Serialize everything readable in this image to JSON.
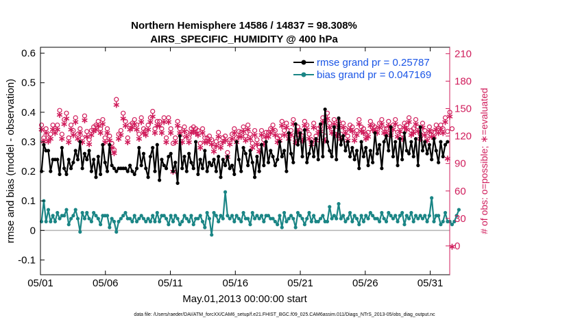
{
  "chart_data": {
    "type": "line",
    "title": "Northern Hemisphere 14586 / 14837 = 98.308%",
    "subtitle": "AIRS_SPECIFIC_HUMIDITY @ 400 hPa",
    "xlabel": "May.01,2013 00:00:00 start",
    "ylabel": "rmse and bias (model - observation)",
    "ylabel_right": "# of obs: o=possible; ∗=evaluated",
    "footnote": "data file: /Users/raeder/DAI/ATM_forcXX/CAM6_setup/f.e21.FHIST_BGC.f09_025.CAM6assim.011/Diags_NTrS_2013-05/obs_diag_output.nc",
    "xlim": [
      0,
      31.5
    ],
    "ylim": [
      -0.15,
      0.62
    ],
    "ylim_right": [
      -31.5,
      217
    ],
    "x_ticks": [
      0,
      5,
      10,
      15,
      20,
      25,
      30
    ],
    "x_tick_labels": [
      "05/01",
      "05/06",
      "05/11",
      "05/16",
      "05/21",
      "05/26",
      "05/31"
    ],
    "y_ticks": [
      -0.1,
      0,
      0.1,
      0.2,
      0.3,
      0.4,
      0.5,
      0.6
    ],
    "y_tick_labels": [
      "-0.1",
      "0",
      "0.1",
      "0.2",
      "0.3",
      "0.4",
      "0.5",
      "0.6"
    ],
    "y_ticks_right": [
      0,
      30,
      60,
      90,
      120,
      150,
      180,
      210
    ],
    "y_tick_labels_right": [
      "0",
      "30",
      "60",
      "90",
      "120",
      "150",
      "180",
      "210"
    ],
    "grid": false,
    "legend_position": "top-right",
    "series": [
      {
        "name": "rmse grand pr = 0.25787",
        "color": "#000000",
        "values": [
          0.2,
          0.29,
          0.27,
          0.27,
          0.2,
          0.24,
          0.24,
          0.24,
          0.19,
          0.28,
          0.21,
          0.19,
          0.24,
          0.21,
          0.23,
          0.27,
          0.24,
          0.3,
          0.21,
          0.26,
          0.24,
          0.27,
          0.2,
          0.24,
          0.18,
          0.25,
          0.19,
          0.29,
          0.23,
          0.2,
          0.29,
          0.22,
          0.21,
          0.2,
          0.21,
          0.21,
          0.21,
          0.21,
          0.2,
          0.22,
          0.2,
          0.19,
          0.21,
          0.28,
          0.22,
          0.26,
          0.21,
          0.18,
          0.25,
          0.28,
          0.2,
          0.29,
          0.17,
          0.24,
          0.22,
          0.21,
          0.25,
          0.26,
          0.2,
          0.23,
          0.16,
          0.32,
          0.21,
          0.25,
          0.2,
          0.26,
          0.23,
          0.21,
          0.3,
          0.19,
          0.24,
          0.21,
          0.27,
          0.2,
          0.23,
          0.22,
          0.24,
          0.2,
          0.25,
          0.18,
          0.24,
          0.22,
          0.25,
          0.21,
          0.22,
          0.19,
          0.3,
          0.24,
          0.2,
          0.28,
          0.26,
          0.22,
          0.27,
          0.23,
          0.18,
          0.25,
          0.2,
          0.29,
          0.22,
          0.3,
          0.23,
          0.27,
          0.25,
          0.22,
          0.24,
          0.3,
          0.25,
          0.27,
          0.2,
          0.33,
          0.26,
          0.23,
          0.36,
          0.29,
          0.33,
          0.25,
          0.34,
          0.23,
          0.26,
          0.3,
          0.25,
          0.31,
          0.24,
          0.36,
          0.25,
          0.41,
          0.3,
          0.27,
          0.25,
          0.35,
          0.24,
          0.38,
          0.29,
          0.32,
          0.27,
          0.3,
          0.25,
          0.28,
          0.24,
          0.27,
          0.21,
          0.3,
          0.25,
          0.28,
          0.22,
          0.27,
          0.23,
          0.33,
          0.26,
          0.29,
          0.21,
          0.3,
          0.32,
          0.27,
          0.35,
          0.25,
          0.3,
          0.22,
          0.31,
          0.24,
          0.33,
          0.27,
          0.26,
          0.3,
          0.25,
          0.31,
          0.22,
          0.35,
          0.27,
          0.3,
          0.26,
          0.29,
          0.24,
          0.31,
          0.27,
          0.23,
          0.3,
          0.25,
          0.29,
          0.3
        ]
      },
      {
        "name": "bias grand pr = 0.047169",
        "color": "#1a8585",
        "values": [
          0.03,
          0.1,
          0.03,
          0.07,
          0.03,
          0.05,
          0.03,
          0.06,
          0.04,
          0.05,
          0.05,
          0.07,
          0.02,
          0.04,
          0.05,
          0.07,
          0.04,
          -0.005,
          0.06,
          0.04,
          0.06,
          0.04,
          0.03,
          0.06,
          0.05,
          0.04,
          0.02,
          0.05,
          0.05,
          0.05,
          0.01,
          0.04,
          0.03,
          -0.005,
          0.03,
          0.04,
          0.05,
          0.06,
          0.04,
          0.04,
          0.03,
          0.05,
          0.03,
          0.04,
          0.05,
          0.04,
          0.03,
          0.04,
          0.03,
          0.05,
          0.03,
          0.06,
          0.03,
          0.05,
          0.05,
          0.04,
          0.02,
          0.05,
          0.03,
          0.05,
          0.04,
          0.02,
          0.03,
          0.05,
          0.04,
          0.03,
          0.05,
          0.02,
          0.04,
          0.04,
          0.05,
          0.03,
          0.01,
          0.06,
          0.04,
          -0.015,
          0.06,
          0.05,
          0.03,
          0.05,
          0.04,
          0.13,
          0.05,
          0.04,
          0.05,
          0.03,
          0.05,
          0.04,
          0.03,
          0.06,
          0.04,
          0.04,
          0.02,
          0.06,
          0.04,
          0.05,
          0.04,
          0.05,
          0.03,
          0.05,
          0.05,
          0.04,
          0.04,
          0.03,
          0.02,
          0.05,
          0.01,
          0.06,
          0.03,
          0.04,
          0.05,
          0.04,
          0.01,
          0.06,
          0.05,
          0.04,
          0.02,
          0.04,
          0.06,
          0.03,
          0.05,
          0.03,
          0.03,
          0.04,
          0.05,
          0.03,
          0.03,
          0.08,
          0.04,
          0.05,
          0.04,
          0.09,
          0.04,
          0.05,
          0.03,
          0.04,
          0.06,
          0.03,
          0.05,
          0.04,
          0.02,
          0.05,
          0.03,
          0.05,
          0.04,
          0.06,
          0.05,
          0.04,
          0.04,
          0.03,
          0.06,
          0.04,
          0.03,
          0.06,
          0.05,
          0.04,
          0.05,
          0.03,
          0.05,
          0.06,
          0.02,
          0.05,
          0.04,
          0.06,
          0.03,
          0.05,
          0.04,
          0.05,
          0.04,
          0.05,
          0.03,
          0.05,
          0.11,
          0.03,
          0.05,
          0.05,
          0.02,
          0.03,
          0.06,
          0.03,
          0.03,
          0.02,
          0.03,
          0.05,
          0.07
        ]
      },
      {
        "name": "possible",
        "marker": "o",
        "axis": "right",
        "color": "#d01c5b",
        "values": [
          132,
          118,
          128,
          118,
          122,
          132,
          128,
          132,
          148,
          122,
          138,
          145,
          118,
          132,
          126,
          140,
          122,
          128,
          118,
          142,
          125,
          116,
          126,
          130,
          132,
          136,
          128,
          138,
          118,
          128,
          120,
          112,
          105,
          160,
          122,
          126,
          145,
          136,
          118,
          132,
          134,
          138,
          132,
          122,
          140,
          128,
          126,
          132,
          140,
          147,
          128,
          136,
          136,
          128,
          140,
          118,
          140,
          128,
          112,
          118,
          136,
          128,
          118,
          130,
          124,
          118,
          128,
          130,
          128,
          126,
          112,
          128,
          118,
          118,
          120,
          116,
          108,
          114,
          124,
          112,
          118,
          120,
          102,
          116,
          122,
          128,
          118,
          125,
          124,
          130,
          120,
          132,
          122,
          112,
          126,
          116,
          108,
          126,
          116,
          124,
          124,
          128,
          132,
          126,
          118,
          120,
          136,
          126,
          134,
          122,
          126,
          138,
          118,
          130,
          126,
          120,
          136,
          132,
          122,
          116,
          134,
          120,
          128,
          130,
          140,
          120,
          145,
          134,
          128,
          138,
          126,
          136,
          122,
          134,
          128,
          120,
          132,
          130,
          120,
          126,
          138,
          130,
          128,
          122,
          124,
          136,
          132,
          130,
          128,
          134,
          138,
          128,
          128,
          136,
          126,
          132,
          138,
          124,
          130,
          122,
          134,
          132,
          140,
          126,
          128,
          138,
          130,
          122,
          134,
          126,
          120,
          130,
          125,
          124,
          132,
          128,
          132,
          128,
          140,
          125,
          146,
          128
        ]
      },
      {
        "name": "evaluated",
        "marker": "*",
        "axis": "right",
        "color": "#d01c5b",
        "values": [
          128,
          115,
          124,
          115,
          118,
          128,
          124,
          128,
          144,
          118,
          134,
          140,
          114,
          128,
          122,
          136,
          118,
          124,
          114,
          138,
          120,
          112,
          122,
          126,
          128,
          132,
          124,
          134,
          114,
          124,
          116,
          108,
          102,
          155,
          118,
          122,
          140,
          132,
          114,
          128,
          130,
          134,
          128,
          118,
          136,
          124,
          122,
          128,
          136,
          142,
          124,
          132,
          132,
          124,
          136,
          114,
          136,
          124,
          82,
          114,
          132,
          124,
          114,
          126,
          120,
          114,
          124,
          126,
          124,
          122,
          108,
          124,
          114,
          114,
          116,
          112,
          104,
          110,
          120,
          108,
          114,
          116,
          98,
          112,
          118,
          124,
          114,
          120,
          120,
          126,
          116,
          128,
          118,
          108,
          122,
          112,
          104,
          122,
          112,
          120,
          120,
          124,
          128,
          122,
          114,
          116,
          132,
          122,
          130,
          118,
          122,
          134,
          114,
          126,
          122,
          116,
          132,
          128,
          118,
          112,
          130,
          116,
          124,
          126,
          136,
          116,
          140,
          130,
          124,
          134,
          122,
          132,
          118,
          130,
          124,
          116,
          128,
          126,
          116,
          122,
          134,
          126,
          124,
          118,
          120,
          132,
          128,
          126,
          124,
          130,
          134,
          124,
          124,
          132,
          122,
          128,
          134,
          120,
          126,
          118,
          130,
          128,
          136,
          122,
          124,
          134,
          126,
          118,
          130,
          122,
          116,
          126,
          120,
          120,
          128,
          124,
          128,
          124,
          136,
          96,
          142,
          0
        ]
      }
    ]
  }
}
